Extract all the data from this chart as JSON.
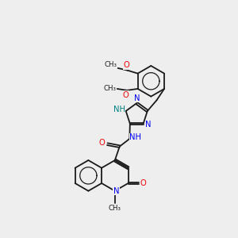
{
  "bg_color": "#eeeeee",
  "bond_color": "#1a1a1a",
  "atom_colors": {
    "N": "#0000ee",
    "O": "#ee0000",
    "NH": "#008080",
    "C": "#1a1a1a"
  },
  "layout": {
    "xlim": [
      0,
      10
    ],
    "ylim": [
      0,
      10
    ]
  }
}
